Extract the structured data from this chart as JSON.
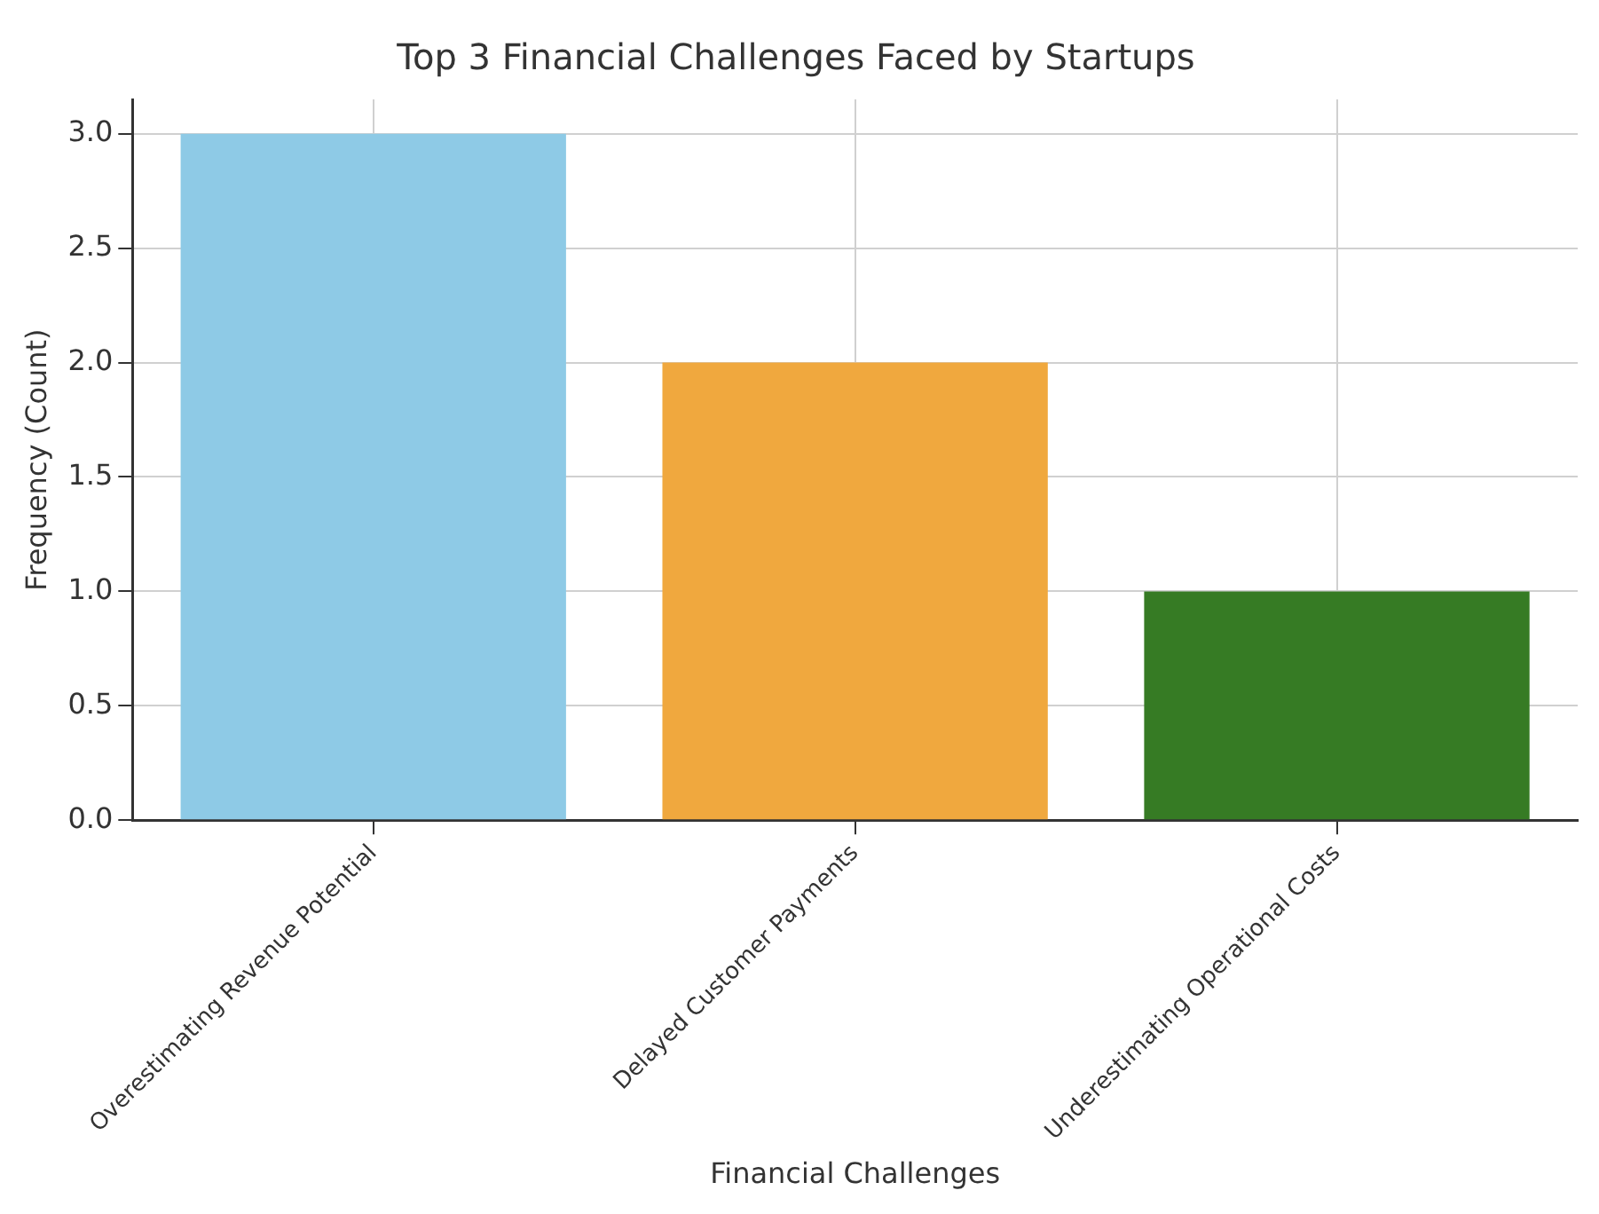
{
  "chart_data": {
    "type": "bar",
    "title": "Top 3 Financial Challenges Faced by Startups",
    "xlabel": "Financial Challenges",
    "ylabel": "Frequency (Count)",
    "categories": [
      "Overestimating Revenue Potential",
      "Delayed Customer Payments",
      "Underestimating Operational Costs"
    ],
    "values": [
      3,
      2,
      1
    ],
    "colors": [
      "#8ecae6",
      "#f0a83e",
      "#367b24"
    ],
    "ylim": [
      0,
      3.15
    ],
    "yticks": [
      {
        "value": 0,
        "label": "0.0"
      },
      {
        "value": 0.5,
        "label": "0.5"
      },
      {
        "value": 1,
        "label": "1.0"
      },
      {
        "value": 1.5,
        "label": "1.5"
      },
      {
        "value": 2,
        "label": "2.0"
      },
      {
        "value": 2.5,
        "label": "2.5"
      },
      {
        "value": 3,
        "label": "3.0"
      }
    ],
    "grid": true,
    "legend": false
  }
}
